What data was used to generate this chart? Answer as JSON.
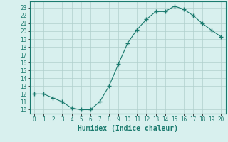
{
  "x": [
    0,
    1,
    2,
    3,
    4,
    5,
    6,
    7,
    8,
    9,
    10,
    11,
    12,
    13,
    14,
    15,
    16,
    17,
    18,
    19,
    20
  ],
  "y": [
    12,
    12,
    11.5,
    11,
    10.2,
    10,
    10,
    11,
    13,
    15.8,
    18.5,
    20.2,
    21.5,
    22.5,
    22.5,
    23.2,
    22.8,
    22,
    21,
    20.1,
    19.3
  ],
  "line_color": "#1a7a6e",
  "marker_color": "#1a7a6e",
  "bg_color": "#d8f0ee",
  "grid_color": "#b0d0cc",
  "xlabel": "Humidex (Indice chaleur)",
  "ylim": [
    9.5,
    23.8
  ],
  "xlim": [
    -0.5,
    20.5
  ],
  "yticks": [
    10,
    11,
    12,
    13,
    14,
    15,
    16,
    17,
    18,
    19,
    20,
    21,
    22,
    23
  ],
  "xticks": [
    0,
    1,
    2,
    3,
    4,
    5,
    6,
    7,
    8,
    9,
    10,
    11,
    12,
    13,
    14,
    15,
    16,
    17,
    18,
    19,
    20
  ],
  "tick_fontsize": 5.5,
  "label_fontsize": 7
}
